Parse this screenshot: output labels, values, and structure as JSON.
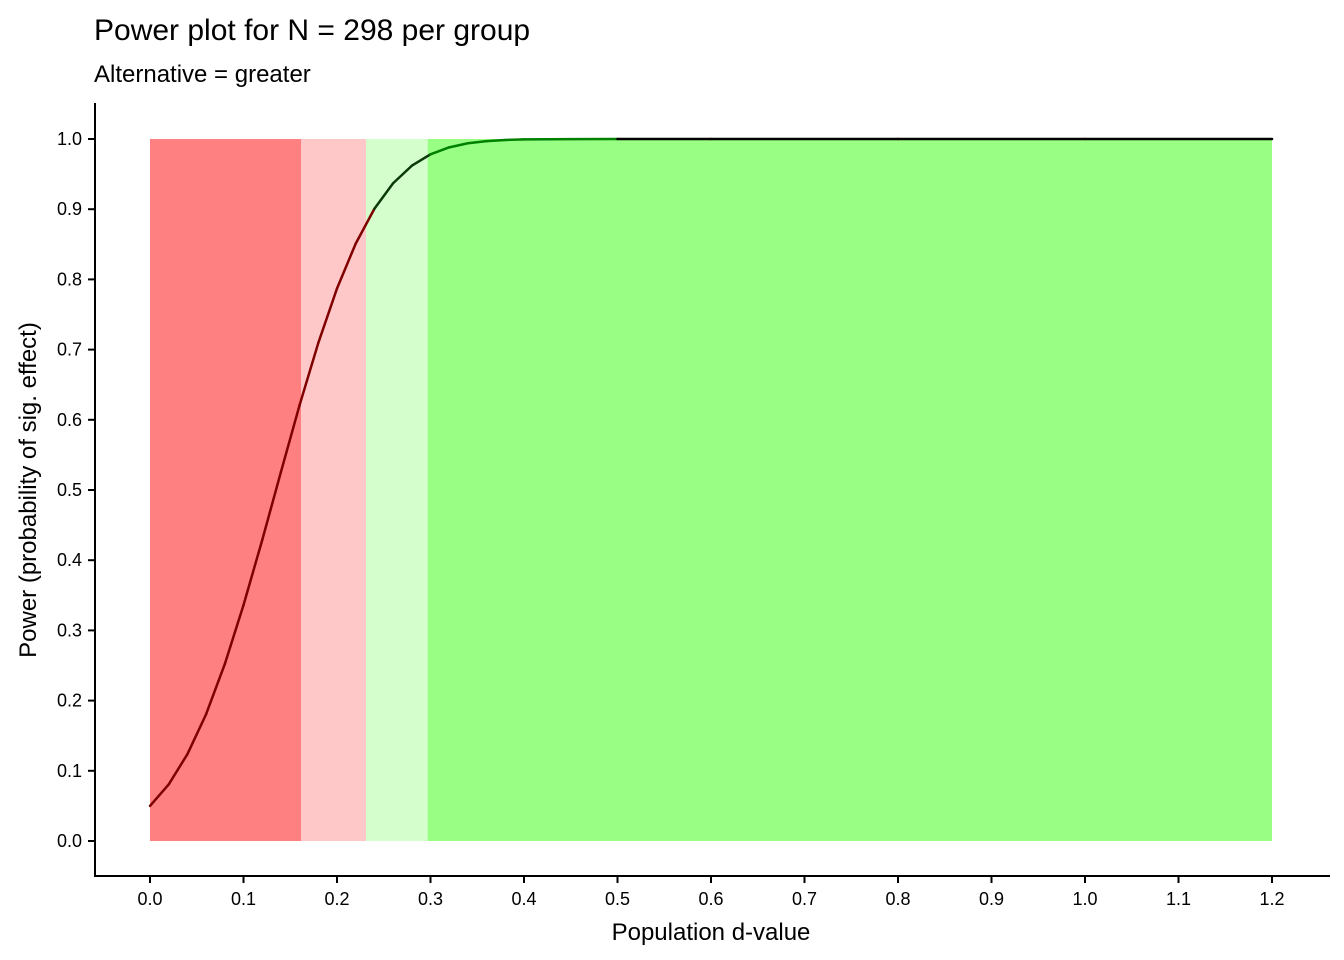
{
  "chart_data": {
    "type": "line",
    "title": "Power plot for N = 298 per group",
    "subtitle": "Alternative = greater",
    "xlabel": "Population d-value",
    "ylabel": "Power (probability of sig. effect)",
    "xlim": [
      0,
      1.2
    ],
    "ylim": [
      0,
      1.0
    ],
    "xticks": [
      "0.0",
      "0.1",
      "0.2",
      "0.3",
      "0.4",
      "0.5",
      "0.6",
      "0.7",
      "0.8",
      "0.9",
      "1.0",
      "1.1",
      "1.2"
    ],
    "yticks": [
      "0.0",
      "0.1",
      "0.2",
      "0.3",
      "0.4",
      "0.5",
      "0.6",
      "0.7",
      "0.8",
      "0.9",
      "1.0"
    ],
    "grid": false,
    "regions": [
      {
        "from": 0.0,
        "to": 0.1615,
        "color": "#FF8080",
        "line_color": "#800000"
      },
      {
        "from": 0.1615,
        "to": 0.231,
        "color": "#FFC8C8",
        "line_color": "#800000"
      },
      {
        "from": 0.231,
        "to": 0.297,
        "color": "#D4FFCC",
        "line_color": "#0A3A0A"
      },
      {
        "from": 0.297,
        "to": 1.2,
        "color": "#98FF84",
        "line_color": "#008000"
      }
    ],
    "x": [
      0,
      0.02,
      0.04,
      0.06,
      0.08,
      0.1,
      0.12,
      0.14,
      0.16,
      0.18,
      0.2,
      0.22,
      0.24,
      0.26,
      0.28,
      0.3,
      0.32,
      0.34,
      0.36,
      0.38,
      0.4,
      0.45,
      0.5,
      0.6,
      0.8,
      1.0,
      1.2
    ],
    "y": [
      0.05,
      0.0806,
      0.1237,
      0.1806,
      0.252,
      0.336,
      0.4286,
      0.5255,
      0.621,
      0.7095,
      0.787,
      0.851,
      0.9006,
      0.937,
      0.9619,
      0.9782,
      0.9881,
      0.9939,
      0.997,
      0.9986,
      0.9994,
      0.9999,
      1.0,
      1.0,
      1.0,
      1.0,
      1.0
    ]
  }
}
